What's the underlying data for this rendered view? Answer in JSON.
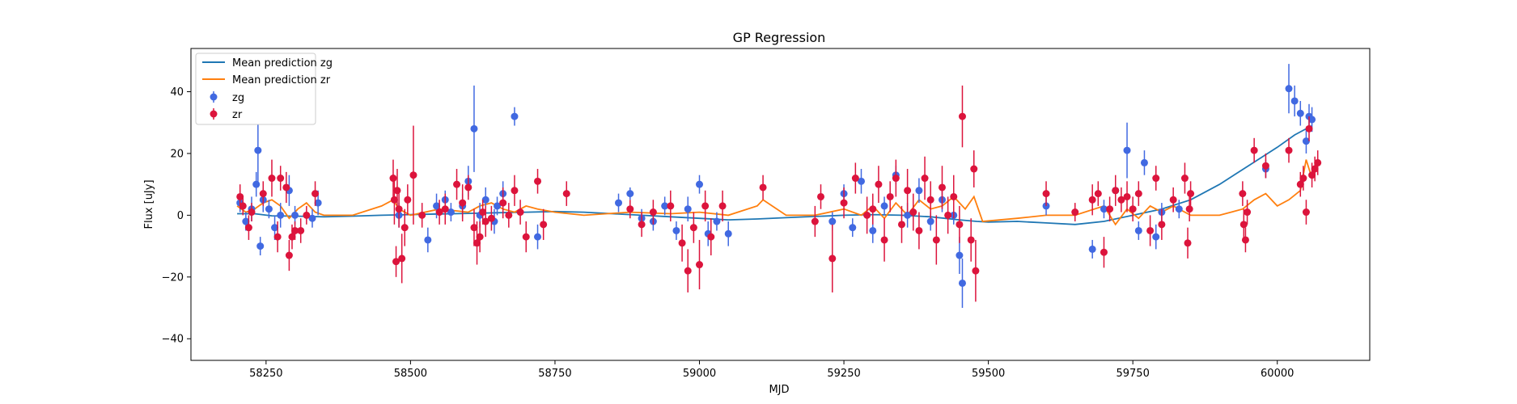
{
  "chart_data": {
    "type": "scatter",
    "title": "GP Regression",
    "xlabel": "MJD",
    "ylabel": "Flux [uJy]",
    "xlim": [
      58120,
      60160
    ],
    "ylim": [
      -47,
      54
    ],
    "xticks": [
      58250,
      58500,
      58750,
      59000,
      59250,
      59500,
      59750,
      60000
    ],
    "yticks": [
      -40,
      -20,
      0,
      20,
      40
    ],
    "grid": false,
    "legend_position": "top-left",
    "series": [
      {
        "name": "Mean prediction zg",
        "kind": "line",
        "color": "#1f77b4",
        "x": [
          58200,
          58230,
          58260,
          58300,
          58350,
          58400,
          58450,
          58500,
          58550,
          58600,
          58650,
          58700,
          58750,
          58800,
          58850,
          58900,
          58950,
          59000,
          59050,
          59100,
          59150,
          59200,
          59250,
          59300,
          59350,
          59400,
          59450,
          59480,
          59500,
          59550,
          59600,
          59650,
          59700,
          59750,
          59800,
          59850,
          59900,
          59950,
          60000,
          60030,
          60060
        ],
        "y": [
          0.5,
          0.5,
          -0.2,
          -0.3,
          -0.5,
          -0.3,
          0,
          0.2,
          0.4,
          0.6,
          0.8,
          1.0,
          1.2,
          1.0,
          0.5,
          0,
          -0.5,
          -1.0,
          -1.5,
          -1.2,
          -0.8,
          -0.4,
          0,
          0.2,
          0,
          -0.5,
          -1.5,
          -2.0,
          -2.2,
          -2.0,
          -2.5,
          -3.0,
          -2.0,
          0,
          2.0,
          5.0,
          10.0,
          16.0,
          22.0,
          26.0,
          29.0
        ]
      },
      {
        "name": "Mean prediction zr",
        "kind": "line",
        "color": "#ff7f0e",
        "x": [
          58200,
          58215,
          58230,
          58245,
          58260,
          58275,
          58290,
          58305,
          58320,
          58335,
          58350,
          58400,
          58450,
          58470,
          58480,
          58500,
          58550,
          58600,
          58620,
          58640,
          58660,
          58680,
          58700,
          58720,
          58750,
          58800,
          58880,
          58950,
          59000,
          59050,
          59100,
          59110,
          59150,
          59200,
          59250,
          59280,
          59300,
          59320,
          59340,
          59360,
          59380,
          59400,
          59420,
          59440,
          59460,
          59475,
          59490,
          59550,
          59600,
          59650,
          59700,
          59720,
          59740,
          59760,
          59780,
          59800,
          59820,
          59850,
          59900,
          59940,
          59960,
          59980,
          60000,
          60020,
          60040,
          60050,
          60060,
          60070
        ],
        "y": [
          3,
          1,
          2,
          4,
          5,
          3,
          -1,
          2,
          4,
          1,
          0,
          0,
          3,
          5,
          2,
          0,
          2,
          1,
          3,
          4,
          2,
          1,
          3,
          2,
          1,
          0,
          1,
          0.5,
          1,
          0,
          3,
          5,
          0,
          0,
          2,
          0,
          3,
          -1,
          4,
          0,
          5,
          2,
          3,
          6,
          2,
          6,
          -2,
          -1,
          0,
          0,
          3,
          -3,
          2,
          -1,
          3,
          1,
          3,
          0,
          0,
          2,
          5,
          7,
          3,
          5,
          8,
          18,
          12,
          17
        ]
      },
      {
        "name": "zg",
        "kind": "errorbar",
        "color": "#4169e1",
        "x": [
          58205,
          58215,
          58225,
          58233,
          58236,
          58240,
          58245,
          58255,
          58265,
          58275,
          58290,
          58300,
          58330,
          58340,
          58480,
          58530,
          58545,
          58560,
          58570,
          58590,
          58600,
          58610,
          58620,
          58630,
          58645,
          58650,
          58660,
          58680,
          58720,
          58860,
          58880,
          58900,
          58920,
          58940,
          58960,
          58980,
          59000,
          59015,
          59030,
          59050,
          59230,
          59250,
          59265,
          59280,
          59300,
          59320,
          59340,
          59360,
          59380,
          59400,
          59420,
          59440,
          59450,
          59455,
          59600,
          59680,
          59700,
          59720,
          59740,
          59760,
          59770,
          59790,
          59800,
          59830,
          59980,
          60020,
          60030,
          60040,
          60050,
          60055,
          60060
        ],
        "y": [
          4,
          -2,
          2,
          10,
          21,
          -10,
          5,
          2,
          -4,
          0,
          8,
          0,
          -1,
          4,
          0,
          -8,
          3,
          5,
          1,
          3,
          11,
          28,
          0,
          5,
          -2,
          3,
          7,
          32,
          -7,
          4,
          7,
          -1,
          -2,
          3,
          -5,
          2,
          10,
          -6,
          -2,
          -6,
          -2,
          7,
          -4,
          11,
          -5,
          3,
          13,
          0,
          8,
          -2,
          5,
          0,
          -13,
          -22,
          3,
          -11,
          2,
          8,
          21,
          -5,
          17,
          -7,
          1,
          2,
          15,
          41,
          37,
          33,
          24,
          32,
          31
        ],
        "err": [
          3,
          3,
          4,
          4,
          12,
          3,
          4,
          3,
          4,
          4,
          5,
          3,
          3,
          4,
          4,
          4,
          4,
          3,
          3,
          4,
          5,
          14,
          4,
          4,
          4,
          3,
          4,
          3,
          4,
          3,
          2,
          3,
          3,
          3,
          3,
          4,
          3,
          4,
          3,
          4,
          3,
          3,
          3,
          4,
          4,
          3,
          3,
          4,
          4,
          3,
          4,
          3,
          6,
          8,
          3,
          3,
          3,
          4,
          9,
          3,
          4,
          4,
          3,
          3,
          3,
          8,
          5,
          4,
          4,
          4,
          4
        ]
      },
      {
        "name": "zr",
        "kind": "errorbar",
        "color": "#dc143c",
        "x": [
          58205,
          58210,
          58220,
          58225,
          58245,
          58260,
          58270,
          58275,
          58285,
          58290,
          58295,
          58300,
          58310,
          58320,
          58335,
          58470,
          58472,
          58475,
          58477,
          58480,
          58485,
          58490,
          58495,
          58505,
          58520,
          58550,
          58560,
          58580,
          58590,
          58600,
          58610,
          58615,
          58620,
          58625,
          58630,
          58640,
          58660,
          58670,
          58680,
          58690,
          58700,
          58720,
          58730,
          58770,
          58880,
          58900,
          58920,
          58950,
          58970,
          58980,
          58990,
          59000,
          59010,
          59020,
          59040,
          59110,
          59200,
          59210,
          59230,
          59250,
          59270,
          59290,
          59300,
          59310,
          59320,
          59330,
          59340,
          59350,
          59360,
          59370,
          59380,
          59390,
          59400,
          59410,
          59420,
          59430,
          59440,
          59450,
          59455,
          59470,
          59475,
          59478,
          59600,
          59650,
          59680,
          59690,
          59700,
          59710,
          59720,
          59730,
          59740,
          59750,
          59760,
          59780,
          59790,
          59800,
          59820,
          59840,
          59845,
          59848,
          59850,
          59940,
          59942,
          59945,
          59948,
          59960,
          59980,
          60020,
          60040,
          60045,
          60050,
          60055,
          60060,
          60065,
          60070
        ],
        "y": [
          6,
          3,
          -4,
          1,
          7,
          12,
          -7,
          12,
          9,
          -13,
          -7,
          -5,
          -5,
          0,
          7,
          12,
          5,
          -15,
          8,
          2,
          -14,
          -4,
          5,
          13,
          0,
          1,
          2,
          10,
          4,
          9,
          -4,
          -9,
          -7,
          1,
          -2,
          -1,
          4,
          0,
          8,
          1,
          -7,
          11,
          -3,
          7,
          2,
          -3,
          1,
          3,
          -9,
          -18,
          -4,
          -16,
          3,
          -7,
          3,
          9,
          -2,
          6,
          -14,
          4,
          12,
          0,
          2,
          10,
          -8,
          6,
          12,
          -3,
          8,
          1,
          -5,
          12,
          5,
          -8,
          9,
          0,
          6,
          -3,
          32,
          -8,
          15,
          -18,
          7,
          1,
          5,
          7,
          -12,
          2,
          8,
          5,
          6,
          2,
          7,
          -5,
          12,
          -3,
          5,
          12,
          -9,
          2,
          7,
          7,
          -3,
          -8,
          1,
          21,
          16,
          21,
          10,
          12,
          1,
          28,
          13,
          15,
          17
        ],
        "err": [
          4,
          3,
          4,
          3,
          4,
          6,
          5,
          4,
          5,
          5,
          4,
          3,
          4,
          3,
          4,
          6,
          8,
          5,
          7,
          6,
          8,
          6,
          5,
          16,
          4,
          4,
          5,
          5,
          6,
          4,
          6,
          7,
          5,
          4,
          5,
          4,
          5,
          4,
          5,
          4,
          5,
          4,
          5,
          4,
          3,
          4,
          4,
          5,
          6,
          7,
          5,
          8,
          5,
          6,
          5,
          4,
          5,
          4,
          11,
          5,
          5,
          6,
          5,
          6,
          7,
          5,
          6,
          6,
          7,
          6,
          6,
          7,
          6,
          8,
          7,
          6,
          7,
          6,
          10,
          7,
          6,
          10,
          4,
          3,
          5,
          4,
          5,
          4,
          5,
          4,
          5,
          4,
          4,
          5,
          4,
          5,
          4,
          5,
          5,
          4,
          4,
          4,
          5,
          4,
          4,
          4,
          4,
          4,
          4,
          4,
          4,
          4,
          4,
          4,
          4
        ]
      }
    ]
  }
}
